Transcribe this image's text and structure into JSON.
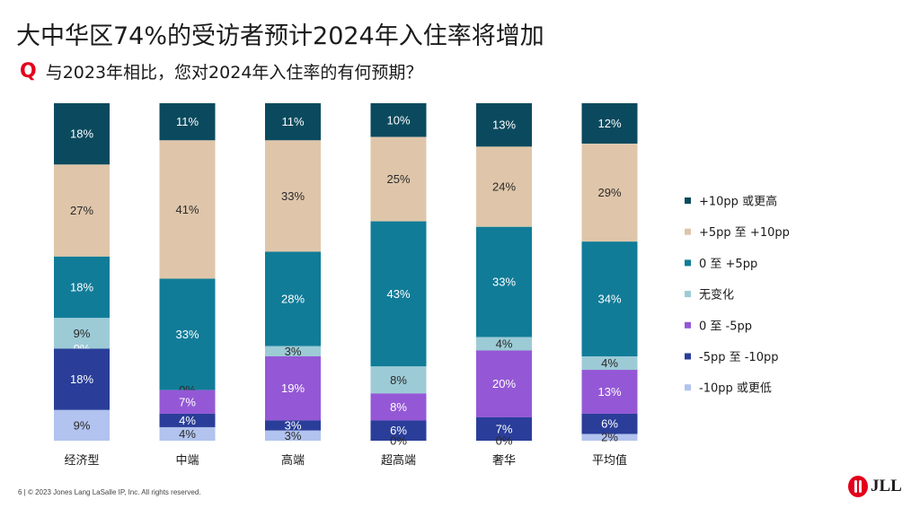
{
  "slide": {
    "title": "大中华区74%的受访者预计2024年入住率将增加",
    "question_mark": "Q",
    "question": "与2023年相比，您对2024年入住率的有何预期？",
    "footer": "6  |  © 2023 Jones Lang LaSalle IP, Inc. All rights reserved.",
    "logo_text": "JLL"
  },
  "chart_data": {
    "type": "bar",
    "stacked": true,
    "normalized": true,
    "categories": [
      "经济型",
      "中端",
      "高端",
      "超高端",
      "奢华",
      "平均值"
    ],
    "series": [
      {
        "name": "+10pp 或更高",
        "color": "#0b4a5e",
        "values": [
          18,
          11,
          11,
          10,
          13,
          12
        ],
        "labels": [
          "18%",
          "11%",
          "11%",
          "10%",
          "13%",
          "12%"
        ]
      },
      {
        "name": "+5pp 至 +10pp",
        "color": "#dfc6aa",
        "values": [
          27,
          41,
          33,
          25,
          24,
          29
        ],
        "labels": [
          "27%",
          "41%",
          "33%",
          "25%",
          "24%",
          "29%"
        ]
      },
      {
        "name": "0 至 +5pp",
        "color": "#117c98",
        "values": [
          18,
          33,
          28,
          43,
          33,
          34
        ],
        "labels": [
          "18%",
          "33%",
          "28%",
          "43%",
          "33%",
          "34%"
        ]
      },
      {
        "name": "无变化",
        "color": "#9ccbd6",
        "values": [
          9,
          0,
          3,
          8,
          4,
          4
        ],
        "labels": [
          "9%",
          "0%",
          "3%",
          "8%",
          "4%",
          "4%"
        ]
      },
      {
        "name": "0 至 -5pp",
        "color": "#9458d6",
        "values": [
          0,
          7,
          19,
          8,
          20,
          13
        ],
        "labels": [
          "0%",
          "7%",
          "19%",
          "8%",
          "20%",
          "13%"
        ]
      },
      {
        "name": "-5pp 至 -10pp",
        "color": "#2a3e99",
        "values": [
          18,
          4,
          3,
          6,
          7,
          6
        ],
        "labels": [
          "18%",
          "4%",
          "3%",
          "6%",
          "7%",
          "6%"
        ]
      },
      {
        "name": "-10pp 或更低",
        "color": "#b1c3ee",
        "values": [
          9,
          4,
          3,
          0,
          0,
          2
        ],
        "labels": [
          "9%",
          "4%",
          "3%",
          "0%",
          "0%",
          "2%"
        ]
      }
    ],
    "legend_position": "right",
    "grid": false
  }
}
